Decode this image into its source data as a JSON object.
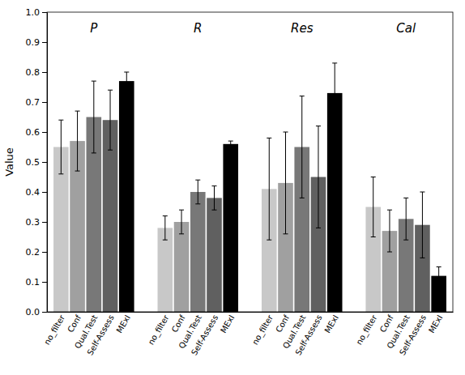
{
  "chart_data": {
    "type": "bar",
    "categories": [
      "P",
      "R",
      "Res",
      "Cal"
    ],
    "series": [
      {
        "name": "no_filter",
        "color": "#c8c8c8",
        "values": [
          0.55,
          0.28,
          0.41,
          0.35
        ],
        "errors": [
          0.09,
          0.04,
          0.17,
          0.1
        ]
      },
      {
        "name": "Conf",
        "color": "#a0a0a0",
        "values": [
          0.57,
          0.3,
          0.43,
          0.27
        ],
        "errors": [
          0.1,
          0.04,
          0.17,
          0.07
        ]
      },
      {
        "name": "Qual.Test",
        "color": "#787878",
        "values": [
          0.65,
          0.4,
          0.55,
          0.31
        ],
        "errors": [
          0.12,
          0.04,
          0.17,
          0.07
        ]
      },
      {
        "name": "Self-Assess",
        "color": "#606060",
        "values": [
          0.64,
          0.38,
          0.45,
          0.29
        ],
        "errors": [
          0.1,
          0.04,
          0.17,
          0.11
        ]
      },
      {
        "name": "MExI",
        "color": "#000000",
        "values": [
          0.77,
          0.56,
          0.73,
          0.12
        ],
        "errors": [
          0.03,
          0.01,
          0.1,
          0.03
        ]
      }
    ],
    "y_label": "Value",
    "ylim": [
      0.0,
      1.0
    ],
    "yticks": [
      {
        "value": 0.0,
        "label": "0.0"
      },
      0.1,
      0.2,
      0.3,
      0.4,
      0.5,
      0.6,
      0.7,
      0.8,
      0.9,
      {
        "value": 1.0,
        "label": "1.0"
      }
    ],
    "grid": false
  }
}
